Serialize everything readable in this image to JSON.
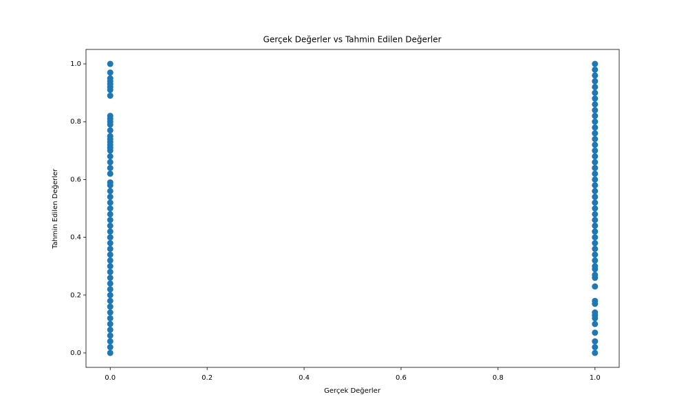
{
  "chart_data": {
    "type": "scatter",
    "title": "Gerçek Değerler vs Tahmin Edilen Değerler",
    "x_label": "Gerçek Değerler",
    "y_label": "Tahmin Edilen Değerler",
    "color": "#1f77b4",
    "xlim": [
      -0.05,
      1.05
    ],
    "ylim": [
      -0.05,
      1.05
    ],
    "xticks": [
      {
        "value": 0,
        "label": "0.0"
      },
      0.2,
      0.4,
      0.6,
      0.8,
      {
        "value": 1,
        "label": "1.0"
      }
    ],
    "yticks": [
      {
        "value": 0,
        "label": "0.0"
      },
      0.2,
      0.4,
      0.6,
      0.8,
      {
        "value": 1,
        "label": "1.0"
      }
    ],
    "x": [
      0,
      0,
      0,
      0,
      0,
      0,
      0,
      0,
      0,
      0,
      0,
      0,
      0,
      0,
      0,
      0,
      0,
      0,
      0,
      0,
      0,
      0,
      0,
      0,
      0,
      0,
      0,
      0,
      0,
      0,
      0,
      0,
      0,
      0,
      0,
      0,
      0,
      0,
      0,
      0,
      0,
      0,
      0,
      0,
      0,
      0,
      0,
      0,
      0,
      0,
      0,
      0,
      0,
      0,
      1,
      1,
      1,
      1,
      1,
      1,
      1,
      1,
      1,
      1,
      1,
      1,
      1,
      1,
      1,
      1,
      1,
      1,
      1,
      1,
      1,
      1,
      1,
      1,
      1,
      1,
      1,
      1,
      1,
      1,
      1,
      1,
      1,
      1,
      1,
      1,
      1,
      1,
      1,
      1,
      1,
      1,
      1,
      1,
      1,
      1,
      1,
      1,
      1,
      1
    ],
    "values": [
      0,
      0.02,
      0.04,
      0.06,
      0.08,
      0.1,
      0.12,
      0.14,
      0.16,
      0.18,
      0.2,
      0.22,
      0.24,
      0.26,
      0.28,
      0.3,
      0.32,
      0.34,
      0.36,
      0.38,
      0.4,
      0.42,
      0.44,
      0.46,
      0.48,
      0.5,
      0.52,
      0.54,
      0.56,
      0.58,
      0.59,
      0.62,
      0.64,
      0.66,
      0.68,
      0.7,
      0.71,
      0.72,
      0.73,
      0.74,
      0.75,
      0.77,
      0.79,
      0.8,
      0.81,
      0.82,
      0.89,
      0.91,
      0.92,
      0.93,
      0.94,
      0.95,
      0.97,
      1,
      0,
      0.02,
      0.04,
      0.07,
      0.1,
      0.12,
      0.13,
      0.14,
      0.17,
      0.18,
      0.23,
      0.26,
      0.27,
      0.29,
      0.3,
      0.32,
      0.34,
      0.36,
      0.38,
      0.4,
      0.42,
      0.44,
      0.46,
      0.48,
      0.5,
      0.52,
      0.54,
      0.56,
      0.58,
      0.6,
      0.62,
      0.64,
      0.66,
      0.68,
      0.7,
      0.72,
      0.74,
      0.76,
      0.78,
      0.8,
      0.82,
      0.84,
      0.86,
      0.88,
      0.9,
      0.92,
      0.94,
      0.96,
      0.98,
      1
    ]
  }
}
